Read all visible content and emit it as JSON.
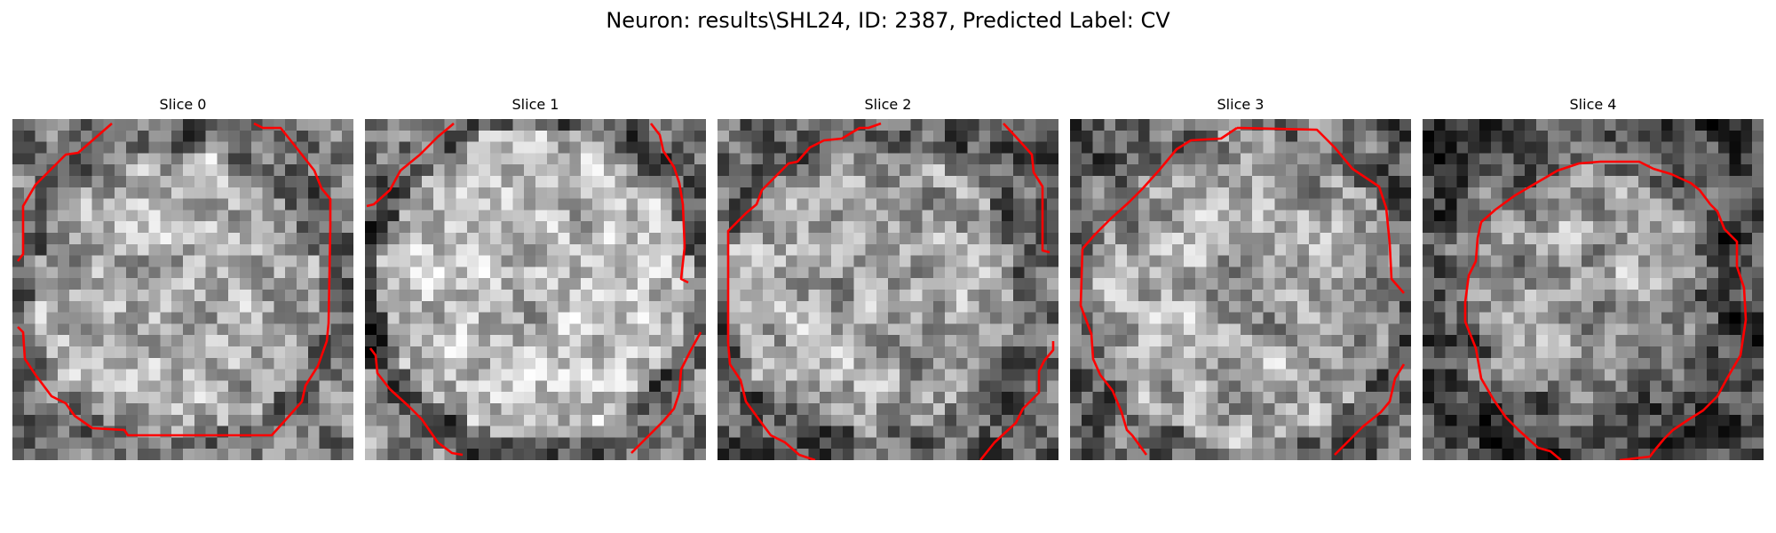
{
  "figure": {
    "suptitle": "Neuron: results\\SHL24, ID: 2387, Predicted Label: CV"
  },
  "colors": {
    "background": "#ffffff",
    "contour": "#ff0000",
    "colormap": "grayscale"
  },
  "panels": [
    {
      "title": "Slice 0"
    },
    {
      "title": "Slice 1"
    },
    {
      "title": "Slice 2"
    },
    {
      "title": "Slice 3"
    },
    {
      "title": "Slice 4"
    }
  ]
}
